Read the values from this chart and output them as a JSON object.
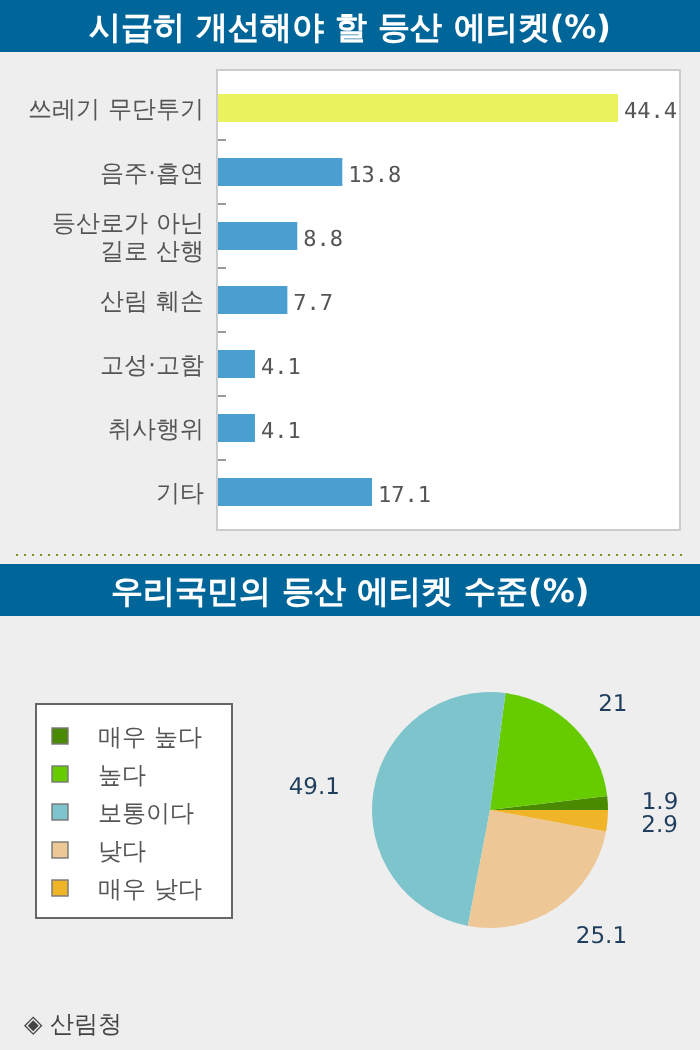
{
  "chart_data": [
    {
      "type": "bar",
      "orientation": "horizontal",
      "title": "시급히 개선해야 할 등산 에티켓(%)",
      "categories": [
        "쓰레기 무단투기",
        "음주·흡연",
        "등산로가 아닌 길로 산행",
        "산림 훼손",
        "고성·고함",
        "취사행위",
        "기타"
      ],
      "values": [
        44.4,
        13.8,
        8.8,
        7.7,
        4.1,
        4.1,
        17.1
      ],
      "colors": [
        "#eaf25e",
        "#4a9fd0",
        "#4a9fd0",
        "#4a9fd0",
        "#4a9fd0",
        "#4a9fd0",
        "#4a9fd0"
      ],
      "data_labels": true
    },
    {
      "type": "pie",
      "title": "우리국민의 등산 에티켓 수준(%)",
      "categories": [
        "매우 높다",
        "높다",
        "보통이다",
        "낮다",
        "매우 낮다"
      ],
      "values": [
        1.9,
        21,
        49.1,
        25.1,
        2.9
      ],
      "colors": [
        "#4a8a00",
        "#66cc00",
        "#7ec4cc",
        "#eec796",
        "#f0b428"
      ],
      "data_labels": true,
      "legend": "left",
      "annotations": [
        "◈ 산림청"
      ]
    }
  ]
}
